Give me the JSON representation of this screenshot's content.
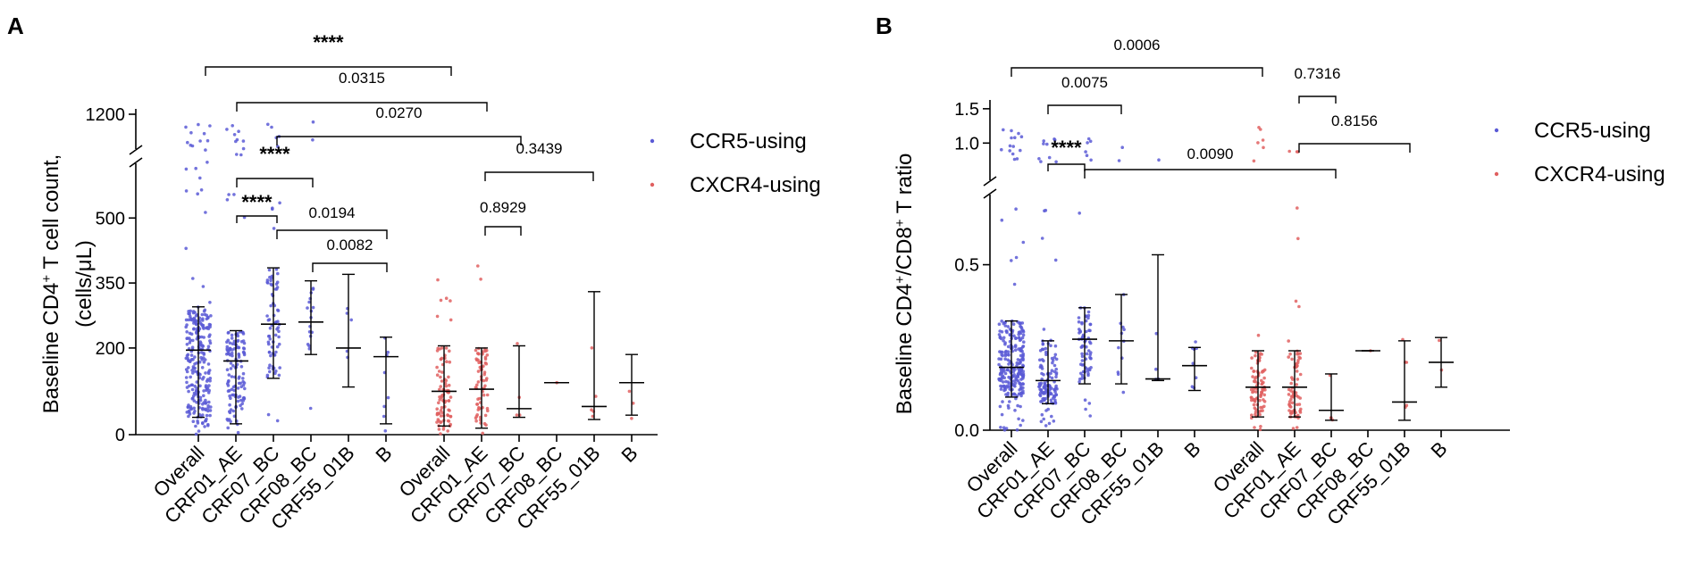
{
  "chart_data": [
    {
      "panel": "A",
      "type": "scatter",
      "ylabel_line1": "Baseline CD4",
      "ylabel_sup": "+",
      "ylabel_line1_end": " T cell count,",
      "ylabel_line2": "(cells/μL)",
      "y_ticks": [
        0,
        200,
        350,
        500,
        1200
      ],
      "y_tick_labels": [
        "0",
        "200",
        "350",
        "500",
        "1200"
      ],
      "y_axis_break": "between 500-range and 1200",
      "legend": [
        {
          "label": "CCR5-using",
          "color": "#5b5bd6"
        },
        {
          "label": "CXCR4-using",
          "color": "#e06060"
        }
      ],
      "groups": [
        {
          "name": "CCR5-using",
          "color": "#5b5bd6",
          "categories": [
            {
              "label": "Overall",
              "median": 195,
              "q1": 40,
              "q3": 295,
              "n": 260,
              "max": 1150
            },
            {
              "label": "CRF01_AE",
              "median": 170,
              "q1": 25,
              "q3": 240,
              "n": 130,
              "max": 1150
            },
            {
              "label": "CRF07_BC",
              "median": 255,
              "q1": 130,
              "q3": 385,
              "n": 75,
              "max": 1150
            },
            {
              "label": "CRF08_BC",
              "median": 260,
              "q1": 185,
              "q3": 355,
              "n": 18,
              "max": 1150
            },
            {
              "label": "CRF55_01B",
              "median": 200,
              "q1": 110,
              "q3": 370,
              "n": 5,
              "max": 380
            },
            {
              "label": "B",
              "median": 180,
              "q1": 25,
              "q3": 225,
              "n": 8,
              "max": 470
            }
          ]
        },
        {
          "name": "CXCR4-using",
          "color": "#e06060",
          "categories": [
            {
              "label": "Overall",
              "median": 100,
              "q1": 20,
              "q3": 205,
              "n": 90,
              "max": 400
            },
            {
              "label": "CRF01_AE",
              "median": 105,
              "q1": 15,
              "q3": 200,
              "n": 70,
              "max": 400
            },
            {
              "label": "CRF07_BC",
              "median": 60,
              "q1": 40,
              "q3": 205,
              "n": 4,
              "max": 250
            },
            {
              "label": "CRF08_BC",
              "median": 120,
              "q1": 120,
              "q3": 120,
              "n": 1,
              "max": 120
            },
            {
              "label": "CRF55_01B",
              "median": 65,
              "q1": 35,
              "q3": 330,
              "n": 5,
              "max": 390
            },
            {
              "label": "B",
              "median": 120,
              "q1": 45,
              "q3": 185,
              "n": 3,
              "max": 185
            }
          ]
        }
      ],
      "annotations": [
        {
          "text": "****",
          "from": "CCR5:Overall",
          "to": "CXCR4:Overall"
        },
        {
          "text": "0.0315",
          "from": "CCR5:CRF01_AE",
          "to": "CXCR4:CRF01_AE"
        },
        {
          "text": "0.0270",
          "from": "CCR5:CRF07_BC",
          "to": "CXCR4:CRF07_BC"
        },
        {
          "text": "0.3439",
          "from": "CXCR4:CRF01_AE",
          "to": "CXCR4:CRF55_01B"
        },
        {
          "text": "****",
          "from": "CCR5:CRF01_AE",
          "to": "CCR5:CRF08_BC"
        },
        {
          "text": "****",
          "from": "CCR5:CRF01_AE",
          "to": "CCR5:CRF07_BC"
        },
        {
          "text": "0.0194",
          "from": "CCR5:CRF07_BC",
          "to": "CCR5:B"
        },
        {
          "text": "0.0082",
          "from": "CCR5:CRF08_BC",
          "to": "CCR5:B"
        },
        {
          "text": "0.8929",
          "from": "CXCR4:CRF01_AE",
          "to": "CXCR4:CRF07_BC"
        }
      ]
    },
    {
      "panel": "B",
      "type": "scatter",
      "ylabel_line1": "Baseline CD4",
      "ylabel_sup": "+",
      "ylabel_mid": "/CD8",
      "ylabel_sup2": "+",
      "ylabel_end": " T ratio",
      "y_ticks": [
        0.0,
        0.5,
        1.0,
        1.5
      ],
      "y_tick_labels": [
        "0.0",
        "0.5",
        "1.0",
        "1.5"
      ],
      "y_axis_break": "between 0.5-range and 1.0",
      "legend": [
        {
          "label": "CCR5-using",
          "color": "#5b5bd6"
        },
        {
          "label": "CXCR4-using",
          "color": "#e06060"
        }
      ],
      "groups": [
        {
          "name": "CCR5-using",
          "color": "#5b5bd6",
          "categories": [
            {
              "label": "Overall",
              "median": 0.19,
              "q1": 0.1,
              "q3": 0.33,
              "n": 260,
              "max": 1.2
            },
            {
              "label": "CRF01_AE",
              "median": 0.15,
              "q1": 0.08,
              "q3": 0.27,
              "n": 130,
              "max": 1.1
            },
            {
              "label": "CRF07_BC",
              "median": 0.275,
              "q1": 0.14,
              "q3": 0.37,
              "n": 75,
              "max": 1.1
            },
            {
              "label": "CRF08_BC",
              "median": 0.27,
              "q1": 0.14,
              "q3": 0.41,
              "n": 12,
              "max": 0.95
            },
            {
              "label": "CRF55_01B",
              "median": 0.155,
              "q1": 0.15,
              "q3": 0.53,
              "n": 5,
              "max": 0.75
            },
            {
              "label": "B",
              "median": 0.195,
              "q1": 0.12,
              "q3": 0.25,
              "n": 8,
              "max": 0.3
            }
          ]
        },
        {
          "name": "CXCR4-using",
          "color": "#e06060",
          "categories": [
            {
              "label": "Overall",
              "median": 0.13,
              "q1": 0.04,
              "q3": 0.24,
              "n": 90,
              "max": 1.5
            },
            {
              "label": "CRF01_AE",
              "median": 0.13,
              "q1": 0.04,
              "q3": 0.24,
              "n": 70,
              "max": 0.75
            },
            {
              "label": "CRF07_BC",
              "median": 0.06,
              "q1": 0.03,
              "q3": 0.17,
              "n": 4,
              "max": 0.17
            },
            {
              "label": "CRF08_BC",
              "median": 0.24,
              "q1": 0.24,
              "q3": 0.24,
              "n": 1,
              "max": 0.24
            },
            {
              "label": "CRF55_01B",
              "median": 0.085,
              "q1": 0.03,
              "q3": 0.27,
              "n": 5,
              "max": 0.45
            },
            {
              "label": "B",
              "median": 0.205,
              "q1": 0.13,
              "q3": 0.28,
              "n": 2,
              "max": 0.28
            }
          ]
        }
      ],
      "annotations": [
        {
          "text": "0.0006",
          "from": "CCR5:Overall",
          "to": "CXCR4:Overall"
        },
        {
          "text": "0.0075",
          "from": "CCR5:CRF01_AE",
          "to": "CCR5:CRF08_BC"
        },
        {
          "text": "0.7316",
          "from": "CXCR4:CRF01_AE",
          "to": "CXCR4:CRF07_BC"
        },
        {
          "text": "0.8156",
          "from": "CXCR4:CRF01_AE",
          "to": "CXCR4:CRF55_01B"
        },
        {
          "text": "****",
          "from": "CCR5:CRF01_AE",
          "to": "CCR5:CRF07_BC"
        },
        {
          "text": "0.0090",
          "from": "CCR5:CRF07_BC",
          "to": "CXCR4:CRF07_BC"
        }
      ]
    }
  ]
}
